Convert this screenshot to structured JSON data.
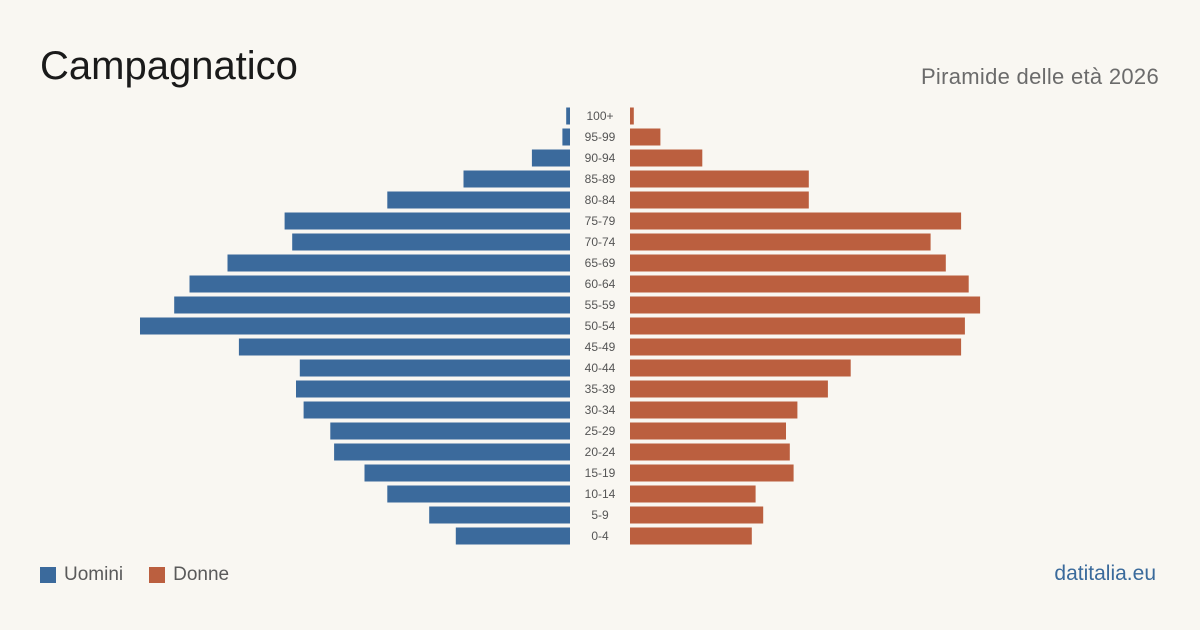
{
  "header": {
    "title": "Campagnatico",
    "subtitle": "Piramide delle età 2026"
  },
  "legend": {
    "men_label": "Uomini",
    "women_label": "Donne"
  },
  "source": "datitalia.eu",
  "colors": {
    "men": "#3b6a9c",
    "women": "#bb5f3f",
    "background": "#f9f7f2"
  },
  "chart_data": {
    "type": "bar",
    "orientation": "horizontal-pyramid",
    "categories": [
      "100+",
      "95-99",
      "90-94",
      "85-89",
      "80-84",
      "75-79",
      "70-74",
      "65-69",
      "60-64",
      "55-59",
      "50-54",
      "45-49",
      "40-44",
      "35-39",
      "30-34",
      "25-29",
      "20-24",
      "15-19",
      "10-14",
      "5-9",
      "0-4"
    ],
    "series": [
      {
        "name": "Uomini",
        "values": [
          1,
          2,
          10,
          28,
          48,
          75,
          73,
          90,
          100,
          104,
          113,
          87,
          71,
          72,
          70,
          63,
          62,
          54,
          48,
          37,
          30
        ]
      },
      {
        "name": "Donne",
        "values": [
          1,
          8,
          19,
          47,
          47,
          87,
          79,
          83,
          89,
          92,
          88,
          87,
          58,
          52,
          44,
          41,
          42,
          43,
          33,
          35,
          32
        ]
      }
    ],
    "xlim": [
      0,
      113
    ],
    "grid": false,
    "legend_position": "bottom-left"
  }
}
